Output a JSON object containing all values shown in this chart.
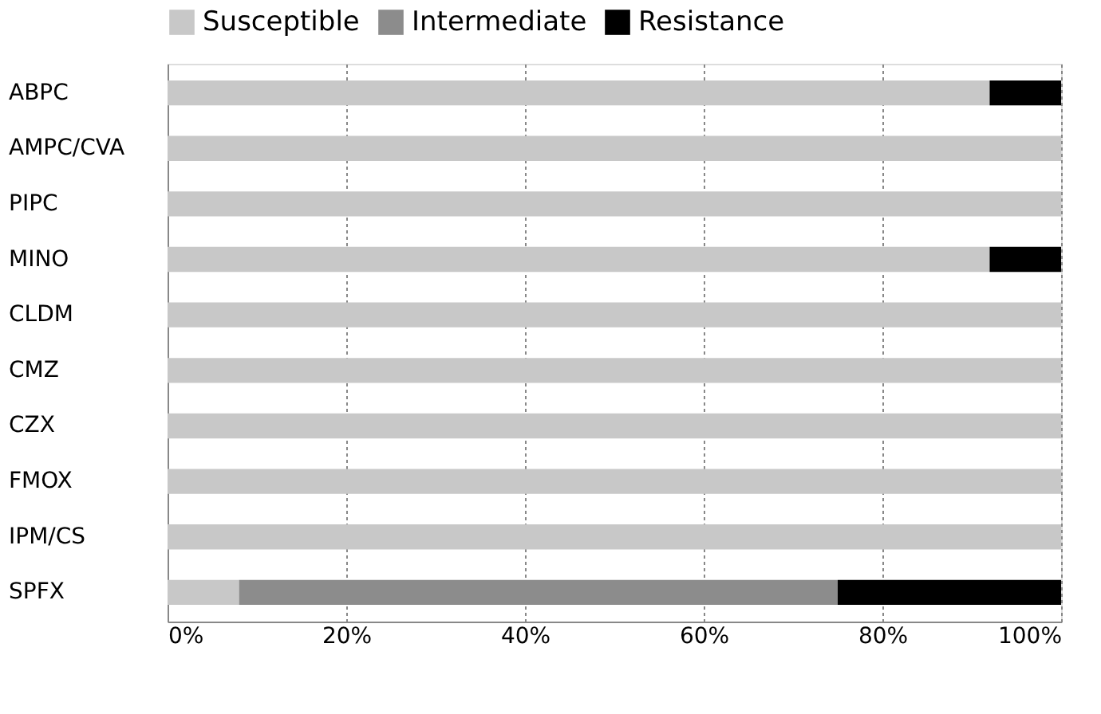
{
  "chart_data": {
    "type": "bar",
    "orientation": "horizontal",
    "stacked": true,
    "categories": [
      "ABPC",
      "AMPC/CVA",
      "PIPC",
      "MINO",
      "CLDM",
      "CMZ",
      "CZX",
      "FMOX",
      "IPM/CS",
      "SPFX"
    ],
    "series": [
      {
        "name": "Susceptible",
        "color": "#c8c8c8",
        "values": [
          92,
          100,
          100,
          92,
          100,
          100,
          100,
          100,
          100,
          8
        ]
      },
      {
        "name": "Intermediate",
        "color": "#8c8c8c",
        "values": [
          0,
          0,
          0,
          0,
          0,
          0,
          0,
          0,
          0,
          67
        ]
      },
      {
        "name": "Resistance",
        "color": "#000000",
        "values": [
          8,
          0,
          0,
          8,
          0,
          0,
          0,
          0,
          0,
          25
        ]
      }
    ],
    "xlim": [
      0,
      100
    ],
    "xticks": [
      {
        "value": 0,
        "label": "0%"
      },
      {
        "value": 20,
        "label": "20%"
      },
      {
        "value": 40,
        "label": "40%"
      },
      {
        "value": 60,
        "label": "60%"
      },
      {
        "value": 80,
        "label": "80%"
      },
      {
        "value": 100,
        "label": "100%"
      }
    ],
    "grid": "x",
    "legend": "top"
  }
}
